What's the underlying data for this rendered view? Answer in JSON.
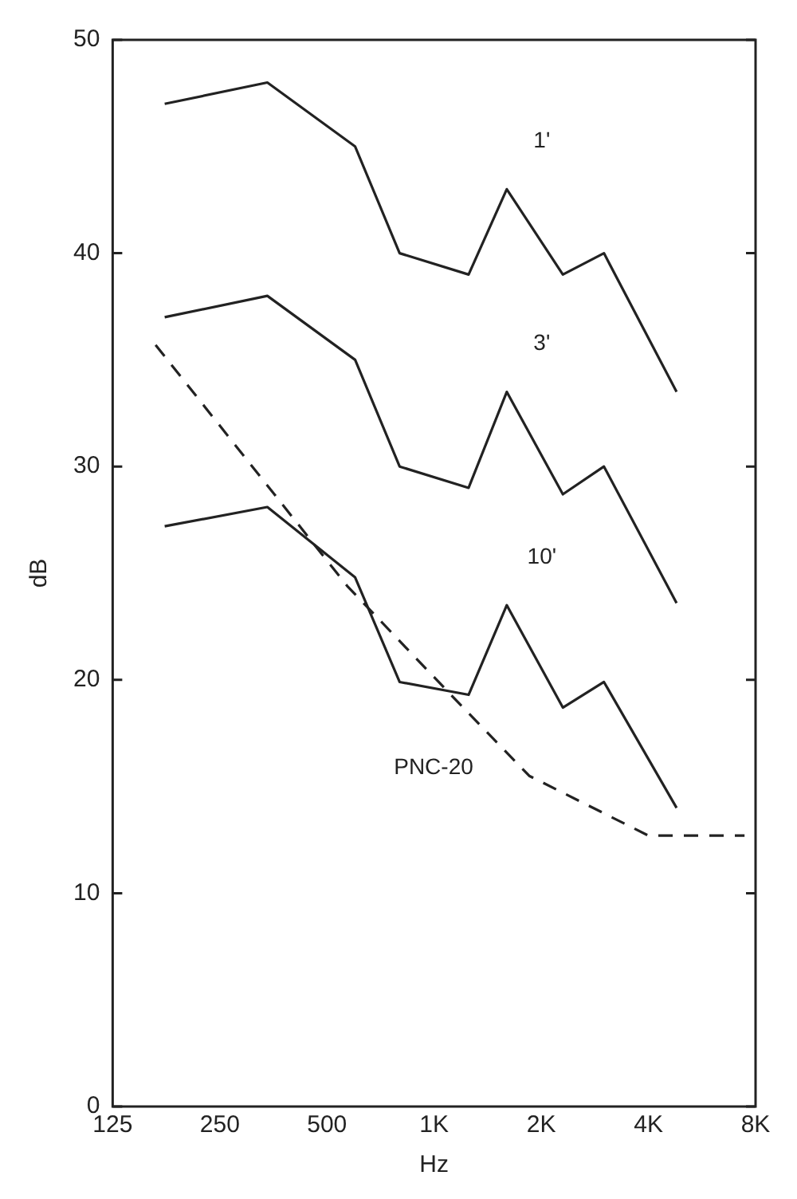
{
  "chart_data": {
    "type": "line",
    "xlabel": "Hz",
    "ylabel": "dB",
    "log": "x",
    "xlim": [
      125,
      8000
    ],
    "xticks": [
      {
        "value": 125,
        "label": "125"
      },
      {
        "value": 250,
        "label": "250"
      },
      {
        "value": 500,
        "label": "500"
      },
      {
        "value": 1000,
        "label": "1K"
      },
      {
        "value": 2000,
        "label": "2K"
      },
      {
        "value": 4000,
        "label": "4K"
      },
      {
        "value": 8000,
        "label": "8K"
      }
    ],
    "ylim": [
      0,
      50
    ],
    "yticks": [
      0,
      10,
      20,
      30,
      40,
      50
    ],
    "grid": false,
    "legend": false,
    "marker": "none",
    "x": [
      175,
      340,
      600,
      800,
      1250,
      1600,
      2300,
      3000,
      4800
    ],
    "series": [
      {
        "name": "1'",
        "color": "#222222",
        "line_style": "solid",
        "values": [
          47,
          48,
          45,
          40,
          39,
          43,
          39,
          40,
          33.5
        ]
      },
      {
        "name": "3'",
        "color": "#222222",
        "line_style": "solid",
        "values": [
          37,
          38,
          35,
          30,
          29,
          33.5,
          28.7,
          30,
          23.6
        ]
      },
      {
        "name": "10'",
        "color": "#222222",
        "line_style": "solid",
        "values": [
          27.2,
          28.1,
          24.8,
          19.9,
          19.3,
          23.5,
          18.7,
          19.9,
          14
        ]
      },
      {
        "name": "PNC-20",
        "color": "#222222",
        "line_style": "dashed",
        "x": [
          165,
          570,
          1100,
          1850,
          4000,
          7450
        ],
        "values": [
          35.7,
          24.4,
          19.4,
          15.5,
          12.7,
          12.7
        ]
      }
    ]
  }
}
